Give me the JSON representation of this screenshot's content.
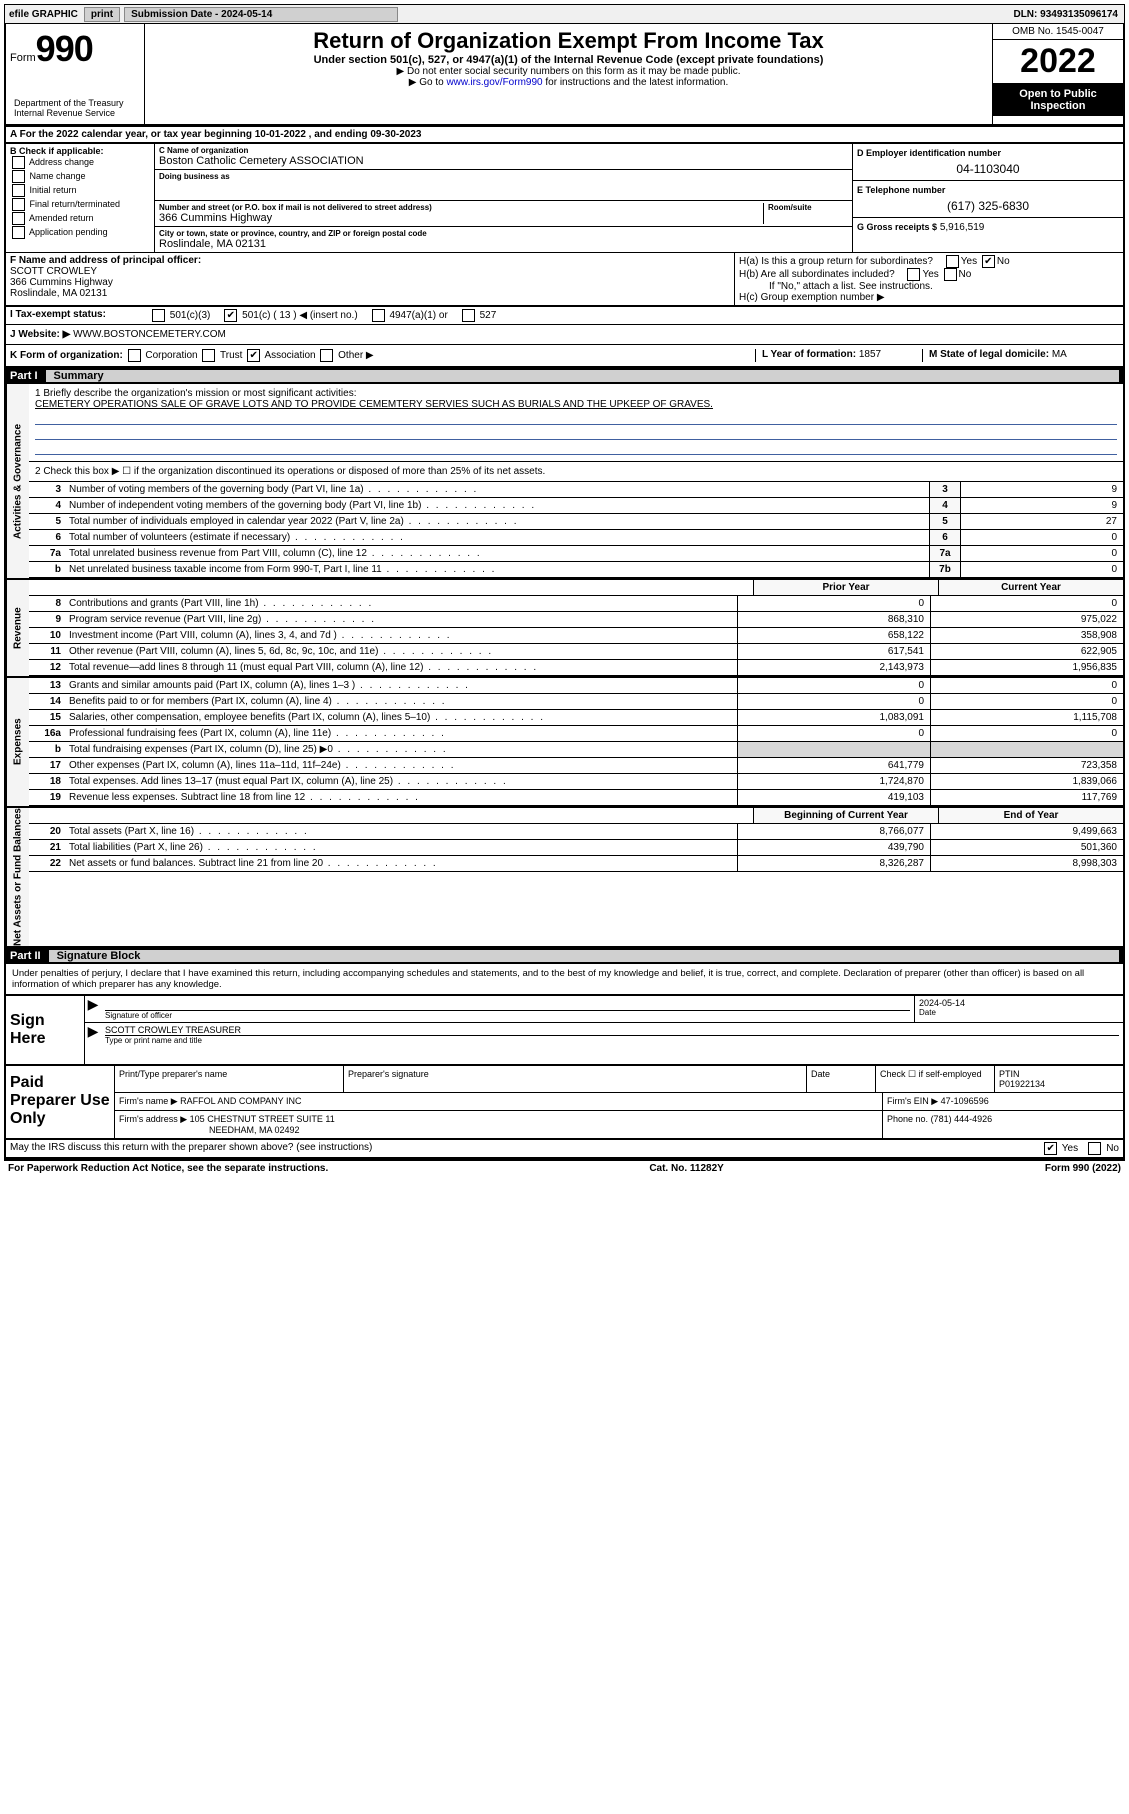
{
  "topbar": {
    "efile_label": "efile GRAPHIC",
    "print_btn": "print",
    "submission_label": "Submission Date - 2024-05-14",
    "dln": "DLN: 93493135096174"
  },
  "header": {
    "form_word": "Form",
    "form_number": "990",
    "title": "Return of Organization Exempt From Income Tax",
    "subtitle": "Under section 501(c), 527, or 4947(a)(1) of the Internal Revenue Code (except private foundations)",
    "note1": "▶ Do not enter social security numbers on this form as it may be made public.",
    "note2_prefix": "▶ Go to ",
    "note2_link": "www.irs.gov/Form990",
    "note2_suffix": " for instructions and the latest information.",
    "dept": "Department of the Treasury\nInternal Revenue Service",
    "omb": "OMB No. 1545-0047",
    "year": "2022",
    "inspection": "Open to Public Inspection"
  },
  "row_a": "A For the 2022 calendar year, or tax year beginning 10-01-2022   , and ending 09-30-2023",
  "col_b": {
    "label": "B Check if applicable:",
    "opts": [
      "Address change",
      "Name change",
      "Initial return",
      "Final return/terminated",
      "Amended return",
      "Application pending"
    ]
  },
  "col_c": {
    "name_label": "C Name of organization",
    "name": "Boston Catholic Cemetery ASSOCIATION",
    "dba_label": "Doing business as",
    "dba": "",
    "street_label": "Number and street (or P.O. box if mail is not delivered to street address)",
    "room_label": "Room/suite",
    "street": "366 Cummins Highway",
    "city_label": "City or town, state or province, country, and ZIP or foreign postal code",
    "city": "Roslindale, MA  02131"
  },
  "col_d": {
    "ein_label": "D Employer identification number",
    "ein": "04-1103040",
    "phone_label": "E Telephone number",
    "phone": "(617) 325-6830",
    "gross_label": "G Gross receipts $",
    "gross": "5,916,519"
  },
  "section_f": {
    "label": "F  Name and address of principal officer:",
    "name": "SCOTT CROWLEY",
    "addr1": "366 Cummins Highway",
    "addr2": "Roslindale, MA  02131"
  },
  "section_h": {
    "ha": "H(a)  Is this a group return for subordinates?",
    "hb": "H(b)  Are all subordinates included?",
    "hb_note": "If \"No,\" attach a list. See instructions.",
    "hc": "H(c)  Group exemption number ▶",
    "yes": "Yes",
    "no": "No"
  },
  "row_i": {
    "label": "I   Tax-exempt status:",
    "o1": "501(c)(3)",
    "o2": "501(c) ( 13 ) ◀ (insert no.)",
    "o3": "4947(a)(1) or",
    "o4": "527"
  },
  "row_j": {
    "label": "J   Website: ▶",
    "value": " WWW.BOSTONCEMETERY.COM"
  },
  "row_k": {
    "label": "K Form of organization:",
    "corp": "Corporation",
    "trust": "Trust",
    "assoc": "Association",
    "other": "Other ▶",
    "l_label": "L Year of formation: ",
    "l_val": "1857",
    "m_label": "M State of legal domicile: ",
    "m_val": "MA"
  },
  "part1": {
    "label": "Part I",
    "title": "Summary"
  },
  "summary": {
    "line1_label": "1   Briefly describe the organization's mission or most significant activities:",
    "line1_text": "CEMETERY OPERATIONS SALE OF GRAVE LOTS AND TO PROVIDE CEMEMTERY SERVIES SUCH AS BURIALS AND THE UPKEEP OF GRAVES.",
    "line2": "2   Check this box ▶ ☐  if the organization discontinued its operations or disposed of more than 25% of its net assets.",
    "side_activities": "Activities & Governance",
    "side_revenue": "Revenue",
    "side_expenses": "Expenses",
    "side_netassets": "Net Assets or Fund Balances",
    "rows_gov": [
      {
        "n": "3",
        "d": "Number of voting members of the governing body (Part VI, line 1a)",
        "ref": "3",
        "v": "9"
      },
      {
        "n": "4",
        "d": "Number of independent voting members of the governing body (Part VI, line 1b)",
        "ref": "4",
        "v": "9"
      },
      {
        "n": "5",
        "d": "Total number of individuals employed in calendar year 2022 (Part V, line 2a)",
        "ref": "5",
        "v": "27"
      },
      {
        "n": "6",
        "d": "Total number of volunteers (estimate if necessary)",
        "ref": "6",
        "v": "0"
      },
      {
        "n": "7a",
        "d": "Total unrelated business revenue from Part VIII, column (C), line 12",
        "ref": "7a",
        "v": "0"
      },
      {
        "n": "b",
        "d": "Net unrelated business taxable income from Form 990-T, Part I, line 11",
        "ref": "7b",
        "v": "0"
      }
    ],
    "head_prior": "Prior Year",
    "head_current": "Current Year",
    "rows_rev": [
      {
        "n": "8",
        "d": "Contributions and grants (Part VIII, line 1h)",
        "p": "0",
        "c": "0"
      },
      {
        "n": "9",
        "d": "Program service revenue (Part VIII, line 2g)",
        "p": "868,310",
        "c": "975,022"
      },
      {
        "n": "10",
        "d": "Investment income (Part VIII, column (A), lines 3, 4, and 7d )",
        "p": "658,122",
        "c": "358,908"
      },
      {
        "n": "11",
        "d": "Other revenue (Part VIII, column (A), lines 5, 6d, 8c, 9c, 10c, and 11e)",
        "p": "617,541",
        "c": "622,905"
      },
      {
        "n": "12",
        "d": "Total revenue—add lines 8 through 11 (must equal Part VIII, column (A), line 12)",
        "p": "2,143,973",
        "c": "1,956,835"
      }
    ],
    "rows_exp": [
      {
        "n": "13",
        "d": "Grants and similar amounts paid (Part IX, column (A), lines 1–3 )",
        "p": "0",
        "c": "0"
      },
      {
        "n": "14",
        "d": "Benefits paid to or for members (Part IX, column (A), line 4)",
        "p": "0",
        "c": "0"
      },
      {
        "n": "15",
        "d": "Salaries, other compensation, employee benefits (Part IX, column (A), lines 5–10)",
        "p": "1,083,091",
        "c": "1,115,708"
      },
      {
        "n": "16a",
        "d": "Professional fundraising fees (Part IX, column (A), line 11e)",
        "p": "0",
        "c": "0"
      },
      {
        "n": "b",
        "d": "Total fundraising expenses (Part IX, column (D), line 25) ▶0",
        "p": "",
        "c": "",
        "grey": true
      },
      {
        "n": "17",
        "d": "Other expenses (Part IX, column (A), lines 11a–11d, 11f–24e)",
        "p": "641,779",
        "c": "723,358"
      },
      {
        "n": "18",
        "d": "Total expenses. Add lines 13–17 (must equal Part IX, column (A), line 25)",
        "p": "1,724,870",
        "c": "1,839,066"
      },
      {
        "n": "19",
        "d": "Revenue less expenses. Subtract line 18 from line 12",
        "p": "419,103",
        "c": "117,769"
      }
    ],
    "head_begin": "Beginning of Current Year",
    "head_end": "End of Year",
    "rows_net": [
      {
        "n": "20",
        "d": "Total assets (Part X, line 16)",
        "p": "8,766,077",
        "c": "9,499,663"
      },
      {
        "n": "21",
        "d": "Total liabilities (Part X, line 26)",
        "p": "439,790",
        "c": "501,360"
      },
      {
        "n": "22",
        "d": "Net assets or fund balances. Subtract line 21 from line 20",
        "p": "8,326,287",
        "c": "8,998,303"
      }
    ]
  },
  "part2": {
    "label": "Part II",
    "title": "Signature Block"
  },
  "sig": {
    "declare": "Under penalties of perjury, I declare that I have examined this return, including accompanying schedules and statements, and to the best of my knowledge and belief, it is true, correct, and complete. Declaration of preparer (other than officer) is based on all information of which preparer has any knowledge.",
    "sign_here": "Sign Here",
    "sig_officer": "Signature of officer",
    "date_label": "Date",
    "date": "2024-05-14",
    "name_title": "SCOTT CROWLEY  TREASURER",
    "name_title_label": "Type or print name and title"
  },
  "paid": {
    "label": "Paid Preparer Use Only",
    "h_name": "Print/Type preparer's name",
    "h_sig": "Preparer's signature",
    "h_date": "Date",
    "h_check": "Check ☐ if self-employed",
    "h_ptin": "PTIN",
    "ptin": "P01922134",
    "firm_name_label": "Firm's name    ▶",
    "firm_name": "RAFFOL AND COMPANY INC",
    "firm_ein_label": "Firm's EIN ▶",
    "firm_ein": "47-1096596",
    "firm_addr_label": "Firm's address ▶",
    "firm_addr1": "105 CHESTNUT STREET SUITE 11",
    "firm_addr2": "NEEDHAM, MA  02492",
    "phone_label": "Phone no.",
    "phone": "(781) 444-4926"
  },
  "bottom": {
    "q": "May the IRS discuss this return with the preparer shown above? (see instructions)",
    "yes": "Yes",
    "no": "No"
  },
  "footer": {
    "left": "For Paperwork Reduction Act Notice, see the separate instructions.",
    "mid": "Cat. No. 11282Y",
    "right": "Form 990 (2022)"
  }
}
